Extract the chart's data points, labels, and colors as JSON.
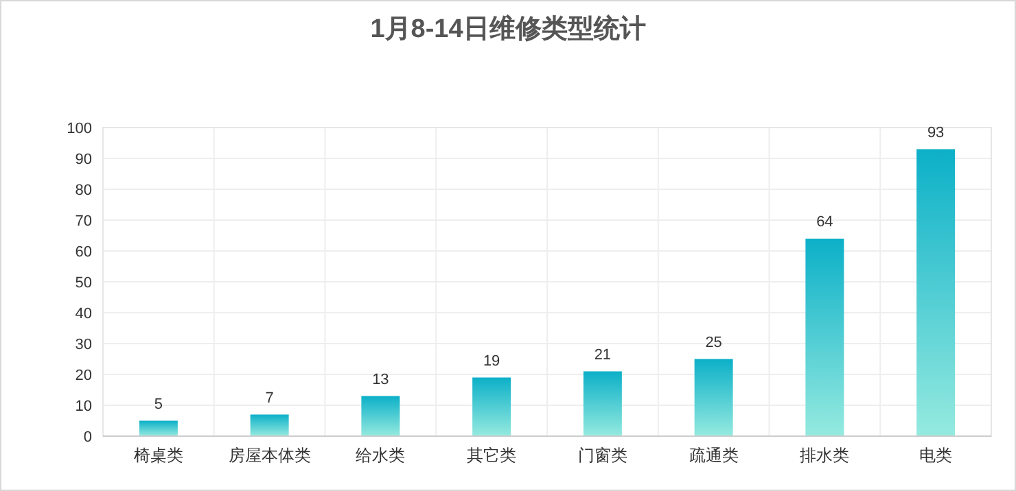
{
  "chart_data": {
    "type": "bar",
    "title": "1月8-14日维修类型统计",
    "categories": [
      "椅桌类",
      "房屋本体类",
      "给水类",
      "其它类",
      "门窗类",
      "疏通类",
      "排水类",
      "电类"
    ],
    "values": [
      5,
      7,
      13,
      19,
      21,
      25,
      64,
      93
    ],
    "color": "#0cb0c8",
    "ylim": [
      0,
      100
    ],
    "yticks": [
      0,
      10,
      20,
      30,
      40,
      50,
      60,
      70,
      80,
      90,
      100
    ],
    "grid": true,
    "data_labels": true
  }
}
